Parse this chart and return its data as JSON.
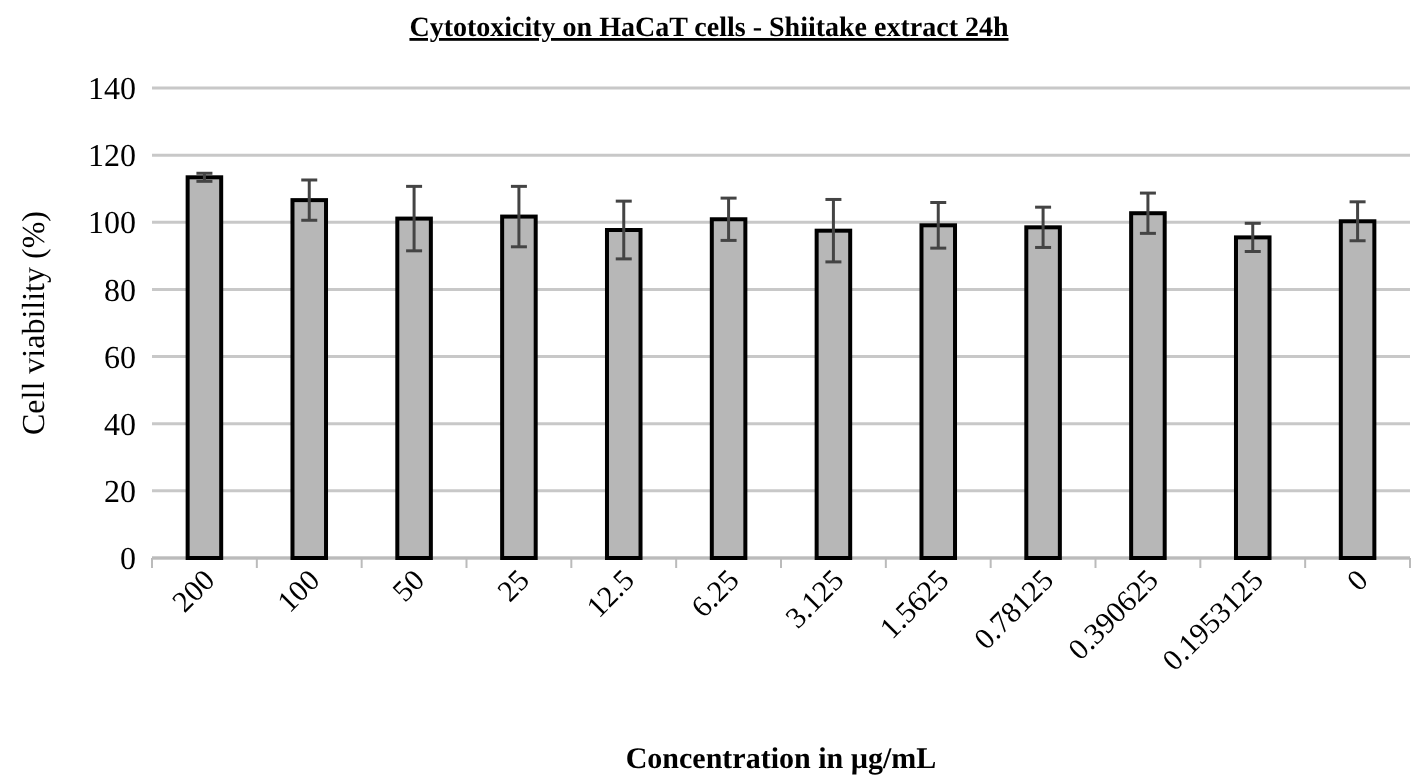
{
  "chart_data": {
    "type": "bar",
    "title": "Cytotoxicity on HaCaT cells - Shiitake extract 24h",
    "xlabel": "Concentration in µg/mL",
    "ylabel": "Cell viability (%)",
    "categories": [
      "200",
      "100",
      "50",
      "25",
      "12.5",
      "6.25",
      "3.125",
      "1.5625",
      "0.78125",
      "0.390625",
      "0.1953125",
      "0"
    ],
    "values": [
      113.4,
      106.6,
      101.1,
      101.7,
      97.7,
      100.9,
      97.5,
      99.1,
      98.5,
      102.7,
      95.5,
      100.3
    ],
    "errors": [
      1.2,
      6,
      9.6,
      9,
      8.6,
      6.3,
      9.3,
      6.8,
      6,
      6,
      4.2,
      5.8
    ],
    "color": "#b7b7b7",
    "ylim": [
      0,
      140
    ],
    "yticks": [
      0,
      20,
      40,
      60,
      80,
      100,
      120,
      140
    ],
    "grid": "y"
  }
}
